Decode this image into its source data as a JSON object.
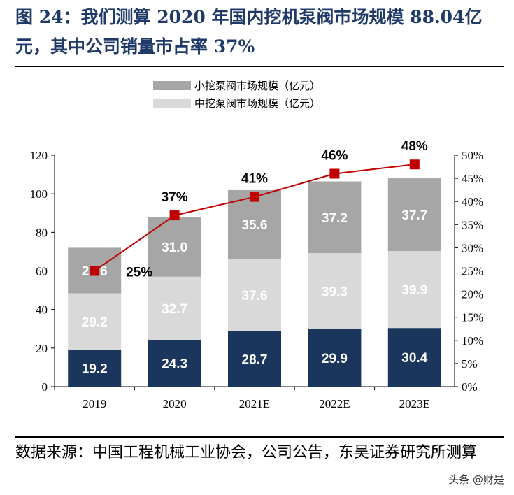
{
  "title": "图 24：我们测算 2020 年国内挖机泵阀市场规模 88.04亿元，其中公司销量市占率 37%",
  "footer": "数据来源：中国工程机械工业协会，公司公告，东吴证券研究所测算",
  "watermark": "头条 @财是",
  "chart_data": {
    "type": "bar",
    "stacked": true,
    "categories": [
      "2019",
      "2020",
      "2021E",
      "2022E",
      "2023E"
    ],
    "series": [
      {
        "values": [
          19.2,
          24.3,
          28.7,
          29.9,
          30.4
        ],
        "color": "#1b365d"
      },
      {
        "name": "中挖泵阀市场规模（亿元）",
        "values": [
          29.2,
          32.7,
          37.6,
          39.3,
          39.9
        ],
        "color": "#d9d9d9"
      },
      {
        "name": "小挖泵阀市场规模（亿元）",
        "values": [
          23.6,
          31.0,
          35.6,
          37.2,
          37.7
        ],
        "color": "#a6a6a6"
      }
    ],
    "line": {
      "values": [
        25,
        37,
        41,
        46,
        48
      ],
      "labels": [
        "25%",
        "37%",
        "41%",
        "46%",
        "48%"
      ],
      "color": "#c00000",
      "axis": "right"
    },
    "ylim": [
      0,
      120
    ],
    "yticks": [
      "0",
      "20",
      "40",
      "60",
      "80",
      "100",
      "120"
    ],
    "y2lim": [
      0,
      50
    ],
    "y2ticks": [
      "0%",
      "5%",
      "10%",
      "15%",
      "20%",
      "25%",
      "30%",
      "35%",
      "40%",
      "45%",
      "50%"
    ],
    "legend": "top-center",
    "grid": false
  }
}
